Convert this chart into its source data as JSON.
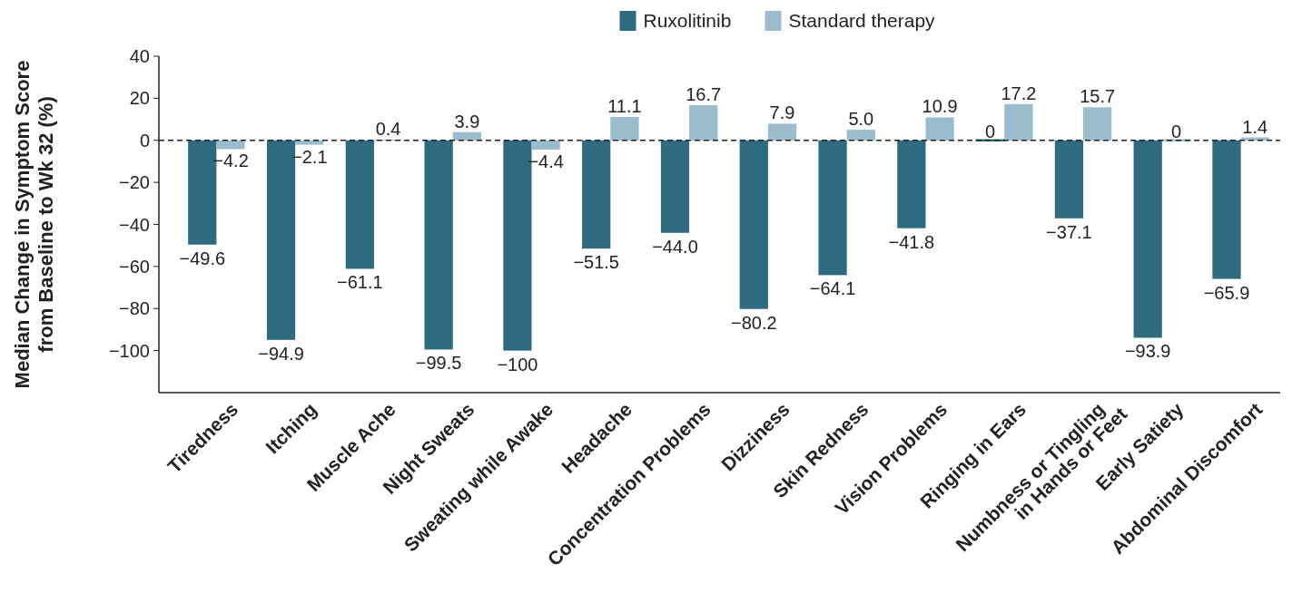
{
  "chart_data": {
    "type": "bar",
    "ylabel": "Median Change in Symptom Score\nfrom Baseline to Wk 32 (%)",
    "categories": [
      "Tiredness",
      "Itching",
      "Muscle Ache",
      "Night Sweats",
      "Sweating while Awake",
      "Headache",
      "Concentration Problems",
      "Dizziness",
      "Skin Redness",
      "Vision Problems",
      "Ringing in Ears",
      "Numbness or Tingling\nin Hands or Feet",
      "Early Satiety",
      "Abdominal Discomfort"
    ],
    "series": [
      {
        "name": "Ruxolitinib",
        "color": "#2e6a80",
        "values": [
          -49.6,
          -94.9,
          -61.1,
          -99.5,
          -100,
          -51.5,
          -44.0,
          -80.2,
          -64.1,
          -41.8,
          0,
          -37.1,
          -93.9,
          -65.9
        ],
        "value_labels": [
          "−49.6",
          "−94.9",
          "−61.1",
          "−99.5",
          "−100",
          "−51.5",
          "−44.0",
          "−80.2",
          "−64.1",
          "−41.8",
          "0",
          "−37.1",
          "−93.9",
          "−65.9"
        ]
      },
      {
        "name": "Standard therapy",
        "color": "#9bbccc",
        "values": [
          -4.2,
          -2.1,
          0.4,
          3.9,
          -4.4,
          11.1,
          16.7,
          7.9,
          5.0,
          10.9,
          17.2,
          15.7,
          0,
          1.4
        ],
        "value_labels": [
          "−4.2",
          "−2.1",
          "0.4",
          "3.9",
          "−4.4",
          "11.1",
          "16.7",
          "7.9",
          "5.0",
          "10.9",
          "17.2",
          "15.7",
          "0",
          "1.4"
        ]
      }
    ],
    "ylim": [
      -120,
      40
    ],
    "yticks": [
      -100,
      -80,
      -60,
      -40,
      -20,
      0,
      20,
      40
    ],
    "grid": false,
    "legend": "top",
    "ref_lines": [
      {
        "axis": "y",
        "value": 0,
        "line_style": "dashed",
        "color": "#222222"
      }
    ]
  }
}
